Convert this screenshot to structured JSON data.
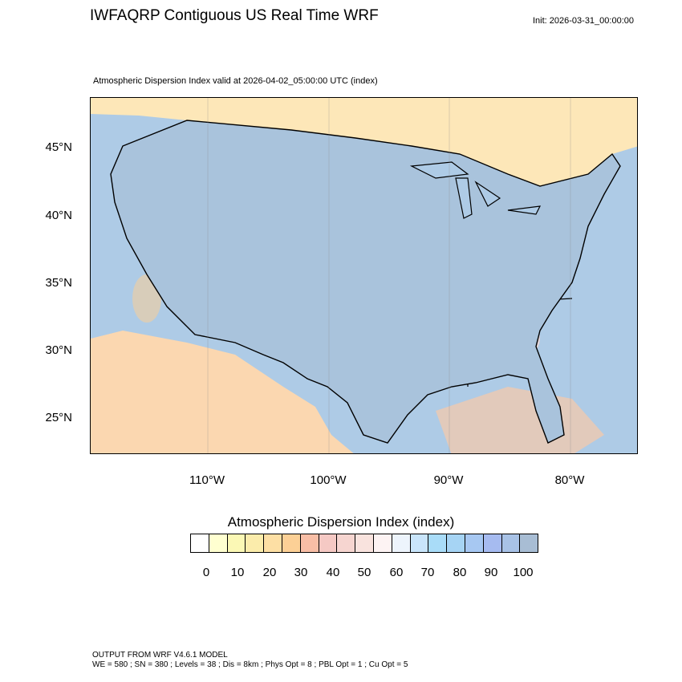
{
  "header": {
    "title": "IWFAQRP Contiguous US Real Time WRF",
    "init": "Init: 2026-03-31_00:00:00",
    "subtitle": "Atmospheric Dispersion Index valid at 2026-04-02_05:00:00 UTC   (index)"
  },
  "map": {
    "lat_labels": [
      "45°N",
      "40°N",
      "35°N",
      "30°N",
      "25°N"
    ],
    "lon_labels": [
      "110°W",
      "100°W",
      "90°W",
      "80°W"
    ],
    "colors": {
      "ocean": "#aecbe6",
      "land_base": "#a9c3dc",
      "canada": "#fde7b8",
      "mexico": "#fbd7b0",
      "border": "#000000"
    }
  },
  "colorbar": {
    "title": "Atmospheric Dispersion Index  (index)",
    "labels": [
      "0",
      "10",
      "20",
      "30",
      "40",
      "50",
      "60",
      "70",
      "80",
      "90",
      "100"
    ],
    "colors": [
      "#ffffff",
      "#ffffd0",
      "#fbf8b5",
      "#fbecab",
      "#fddfa4",
      "#fcd096",
      "#f8bea6",
      "#f5c9c4",
      "#f6d5d0",
      "#f9e3de",
      "#fdf3f3",
      "#edf4fc",
      "#c9e5fb",
      "#a9dcf8",
      "#a6d4f4",
      "#a7c8f2",
      "#a6bbf0",
      "#a8c2e6",
      "#a8bdd4"
    ]
  },
  "footer": {
    "line1": "OUTPUT FROM WRF V4.6.1 MODEL",
    "line2": "WE = 580 ; SN = 380 ; Levels = 38 ; Dis = 8km ; Phys Opt = 8 ; PBL Opt = 1 ; Cu Opt = 5"
  }
}
